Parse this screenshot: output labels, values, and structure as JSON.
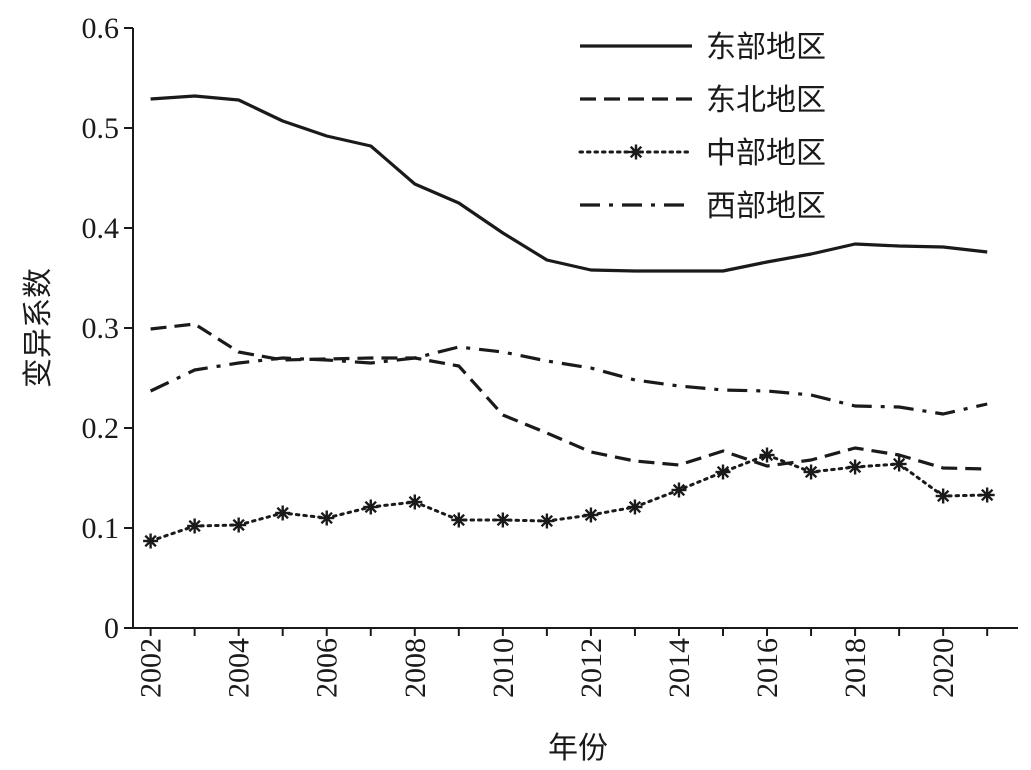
{
  "chart_data": {
    "type": "line",
    "title": "",
    "xlabel": "年份",
    "ylabel": "变异系数",
    "ylim": [
      0,
      0.6
    ],
    "yticks": [
      "0",
      "0.1",
      "0.2",
      "0.3",
      "0.4",
      "0.5",
      "0.6"
    ],
    "xtick_labels": [
      "2002",
      "2004",
      "2006",
      "2008",
      "2010",
      "2012",
      "2014",
      "2016",
      "2018",
      "2020"
    ],
    "x": [
      2002,
      2003,
      2004,
      2005,
      2006,
      2007,
      2008,
      2009,
      2010,
      2011,
      2012,
      2013,
      2014,
      2015,
      2016,
      2017,
      2018,
      2019,
      2020,
      2021
    ],
    "legend_position": "top-right",
    "grid": false,
    "series": [
      {
        "name": "东部地区",
        "style": "solid",
        "values": [
          0.529,
          0.532,
          0.528,
          0.507,
          0.492,
          0.482,
          0.444,
          0.425,
          0.395,
          0.368,
          0.358,
          0.357,
          0.357,
          0.357,
          0.366,
          0.374,
          0.384,
          0.382,
          0.381,
          0.376
        ]
      },
      {
        "name": "东北地区",
        "style": "dashed",
        "values": [
          0.299,
          0.304,
          0.276,
          0.268,
          0.269,
          0.27,
          0.27,
          0.262,
          0.213,
          0.195,
          0.176,
          0.167,
          0.163,
          0.177,
          0.162,
          0.168,
          0.18,
          0.173,
          0.16,
          0.159
        ]
      },
      {
        "name": "中部地区",
        "style": "dotted-star",
        "values": [
          0.087,
          0.102,
          0.103,
          0.115,
          0.11,
          0.121,
          0.126,
          0.108,
          0.108,
          0.107,
          0.113,
          0.121,
          0.138,
          0.156,
          0.173,
          0.156,
          0.161,
          0.164,
          0.132,
          0.133
        ]
      },
      {
        "name": "西部地区",
        "style": "dashdot",
        "values": [
          0.237,
          0.258,
          0.265,
          0.27,
          0.268,
          0.265,
          0.27,
          0.281,
          0.276,
          0.267,
          0.26,
          0.248,
          0.242,
          0.238,
          0.237,
          0.233,
          0.222,
          0.221,
          0.214,
          0.224
        ]
      }
    ]
  }
}
